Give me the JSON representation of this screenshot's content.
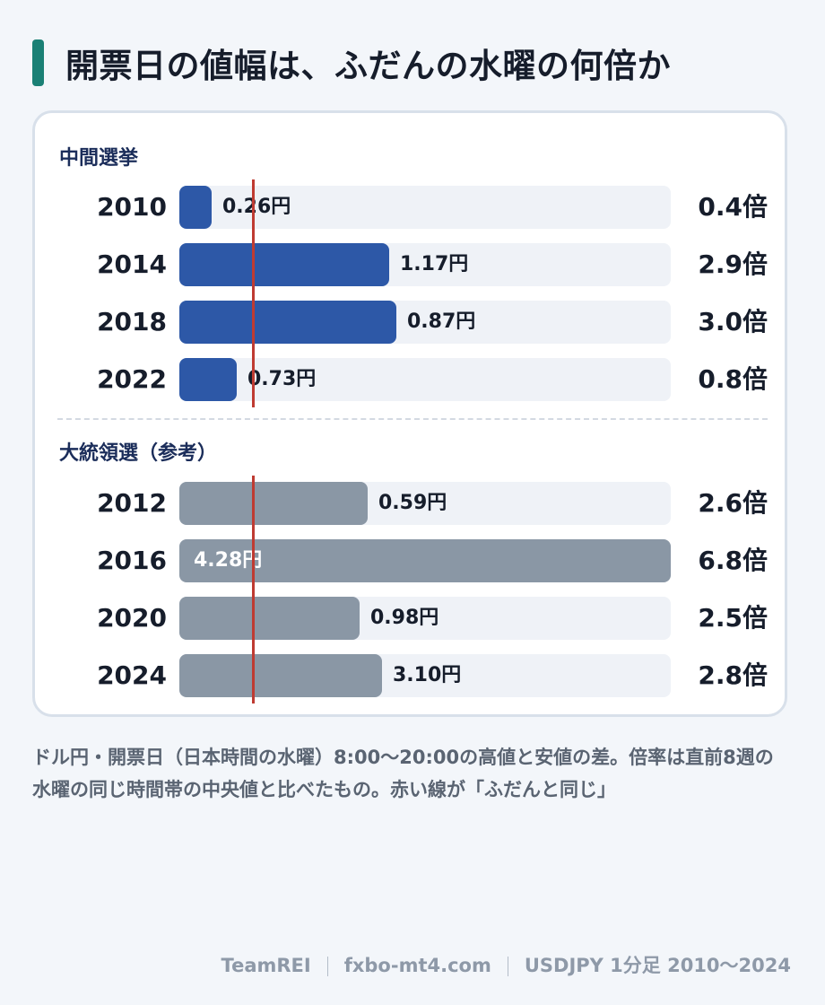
{
  "title": "開票日の値幅は、ふだんの水曜の何倍か",
  "chart_data": {
    "type": "bar",
    "orientation": "horizontal",
    "value_unit": "円",
    "ratio_unit": "倍",
    "xlim": [
      0,
      6.8
    ],
    "reference_line_value": 1.0,
    "reference_line_color": "#bf3b32",
    "groups": [
      {
        "name": "中間選挙",
        "color": "#2d58a7",
        "rows": [
          {
            "year": "2010",
            "value_label": "0.26円",
            "ratio": 0.4,
            "ratio_label": "0.4倍"
          },
          {
            "year": "2014",
            "value_label": "1.17円",
            "ratio": 2.9,
            "ratio_label": "2.9倍"
          },
          {
            "year": "2018",
            "value_label": "0.87円",
            "ratio": 3.0,
            "ratio_label": "3.0倍"
          },
          {
            "year": "2022",
            "value_label": "0.73円",
            "ratio": 0.8,
            "ratio_label": "0.8倍"
          }
        ]
      },
      {
        "name": "大統領選（参考）",
        "color": "#8a97a5",
        "rows": [
          {
            "year": "2012",
            "value_label": "0.59円",
            "ratio": 2.6,
            "ratio_label": "2.6倍"
          },
          {
            "year": "2016",
            "value_label": "4.28円",
            "ratio": 6.8,
            "ratio_label": "6.8倍"
          },
          {
            "year": "2020",
            "value_label": "0.98円",
            "ratio": 2.5,
            "ratio_label": "2.5倍"
          },
          {
            "year": "2024",
            "value_label": "3.10円",
            "ratio": 2.8,
            "ratio_label": "2.8倍"
          }
        ]
      }
    ]
  },
  "caption": "ドル円・開票日（日本時間の水曜）8:00〜20:00の高値と安値の差。倍率は直前8週の水曜の同じ時間帯の中央値と比べたもの。赤い線が「ふだんと同じ」",
  "footer": {
    "brand": "TeamREI",
    "site": "fxbo-mt4.com",
    "source": "USDJPY 1分足 2010〜2024"
  }
}
